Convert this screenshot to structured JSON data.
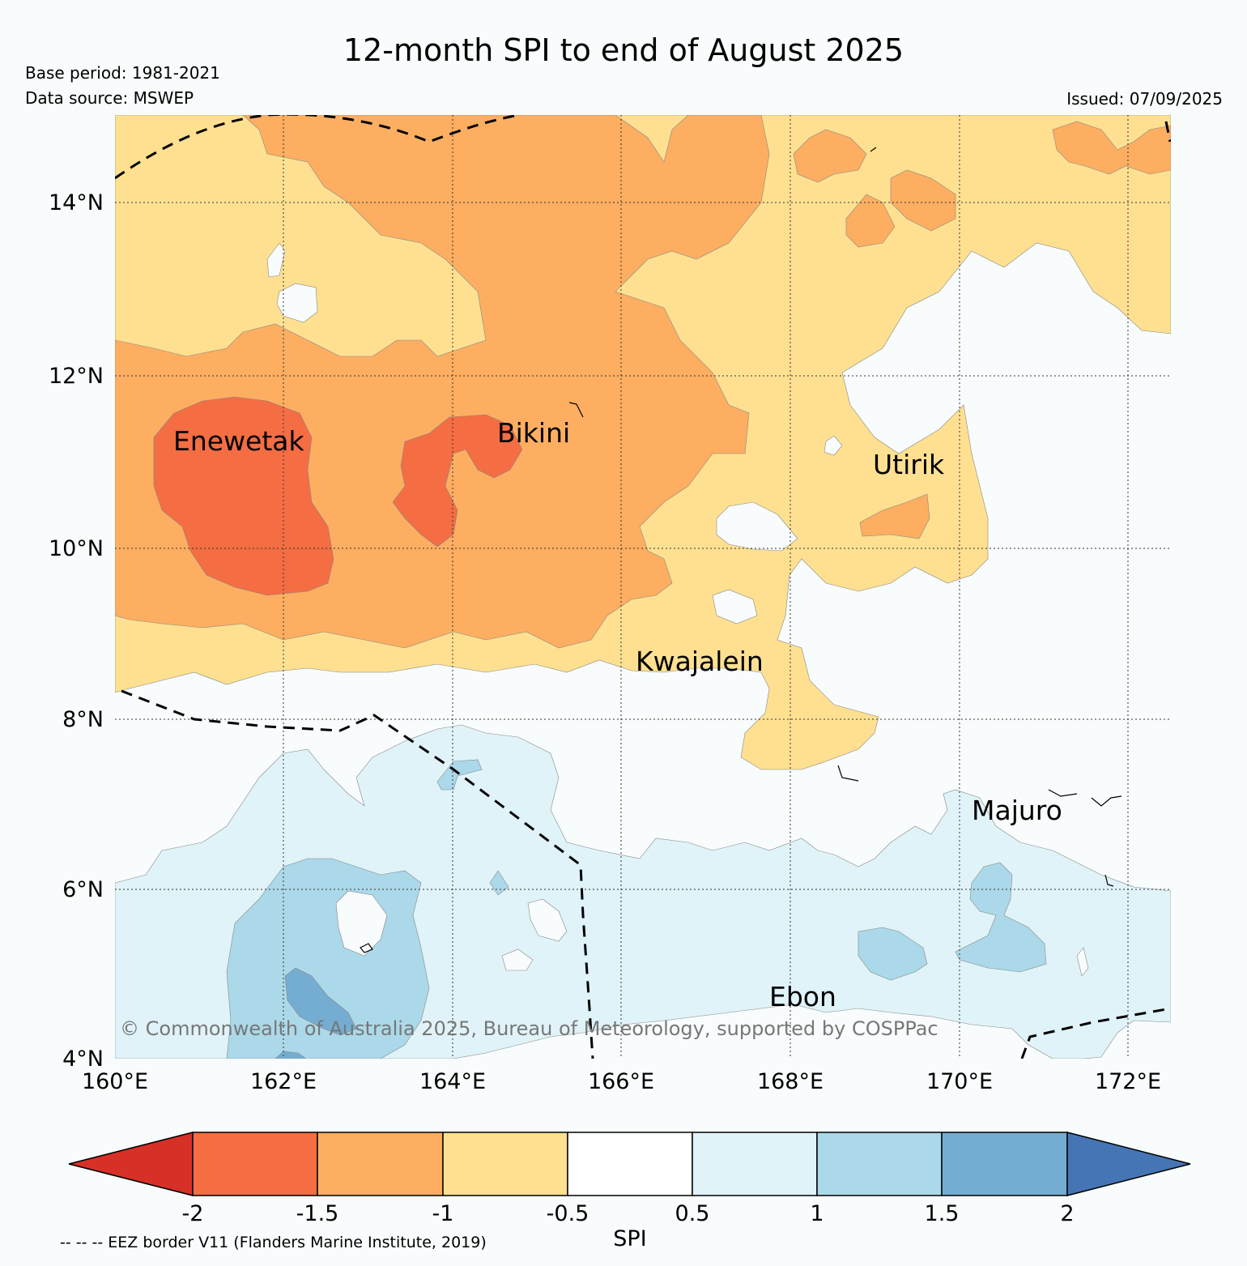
{
  "title": "12-month SPI to end of August 2025",
  "base_period": "Base period: 1981-2021",
  "data_source": "Data source: MSWEP",
  "issued": "Issued: 07/09/2025",
  "lat_labels": [
    "14°N",
    "12°N",
    "10°N",
    "8°N",
    "6°N",
    "4°N"
  ],
  "lon_labels": [
    "160°E",
    "162°E",
    "164°E",
    "166°E",
    "168°E",
    "170°E",
    "172°E"
  ],
  "places": {
    "enewetak": "Enewetak",
    "bikini": "Bikini",
    "utirik": "Utirik",
    "kwajalein": "Kwajalein",
    "majuro": "Majuro",
    "ebon": "Ebon"
  },
  "copyright": "© Commonwealth of Australia 2025, Bureau of Meteorology, supported by COSPPac",
  "colorbar": {
    "label": "SPI",
    "ticks": [
      "-2",
      "-1.5",
      "-1",
      "-0.5",
      "0.5",
      "1",
      "1.5",
      "2"
    ],
    "colors": [
      "#d73027",
      "#f46d43",
      "#fdae61",
      "#fee090",
      "#ffffff",
      "#e0f3f8",
      "#abd9e9",
      "#74add1",
      "#4575b4"
    ]
  },
  "eez_note": "-- -- -- EEZ border V11 (Flanders Marine Institute, 2019)"
}
